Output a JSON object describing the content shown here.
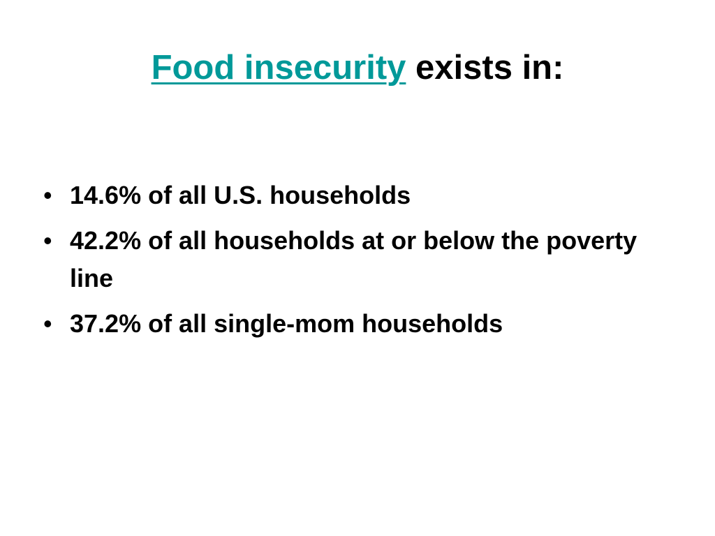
{
  "title": {
    "link": "Food insecurity",
    "rest": "exists in:"
  },
  "bullets": [
    "14.6% of all U.S. households",
    "42.2% of all households at or below the poverty line",
    "37.2% of all single-mom households"
  ]
}
